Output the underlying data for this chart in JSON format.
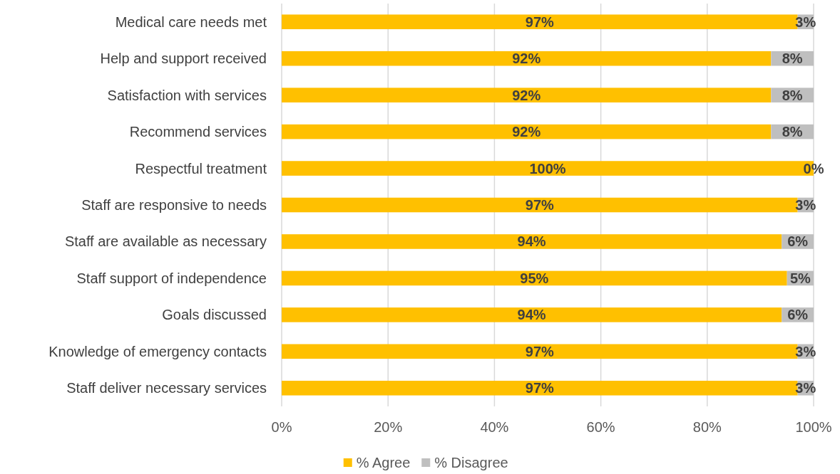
{
  "chart_data": {
    "type": "bar",
    "orientation": "horizontal",
    "stacked": true,
    "categories": [
      "Medical care needs met",
      "Help and support received",
      "Satisfaction with services",
      "Recommend services",
      "Respectful treatment",
      "Staff are responsive to needs",
      "Staff are available as necessary",
      "Staff support of independence",
      "Goals discussed",
      "Knowledge of emergency contacts",
      "Staff deliver necessary services"
    ],
    "series": [
      {
        "name": "% Agree",
        "color": "#ffc000",
        "values": [
          97,
          92,
          92,
          92,
          100,
          97,
          94,
          95,
          94,
          97,
          97
        ],
        "value_labels": [
          "97%",
          "92%",
          "92%",
          "92%",
          "100%",
          "97%",
          "94%",
          "95%",
          "94%",
          "97%",
          "97%"
        ]
      },
      {
        "name": "% Disagree",
        "color": "#bfbfbf",
        "values": [
          3,
          8,
          8,
          8,
          0,
          3,
          6,
          5,
          6,
          3,
          3
        ],
        "value_labels": [
          "3%",
          "8%",
          "8%",
          "8%",
          "0%",
          "3%",
          "6%",
          "5%",
          "6%",
          "3%",
          "3%"
        ]
      }
    ],
    "xlim": [
      0,
      100
    ],
    "xticks": [
      {
        "value": 0,
        "label": "0%"
      },
      {
        "value": 20,
        "label": "20%"
      },
      {
        "value": 40,
        "label": "40%"
      },
      {
        "value": 60,
        "label": "60%"
      },
      {
        "value": 80,
        "label": "80%"
      },
      {
        "value": 100,
        "label": "100%"
      }
    ],
    "grid": "x",
    "legend": "bottom"
  }
}
